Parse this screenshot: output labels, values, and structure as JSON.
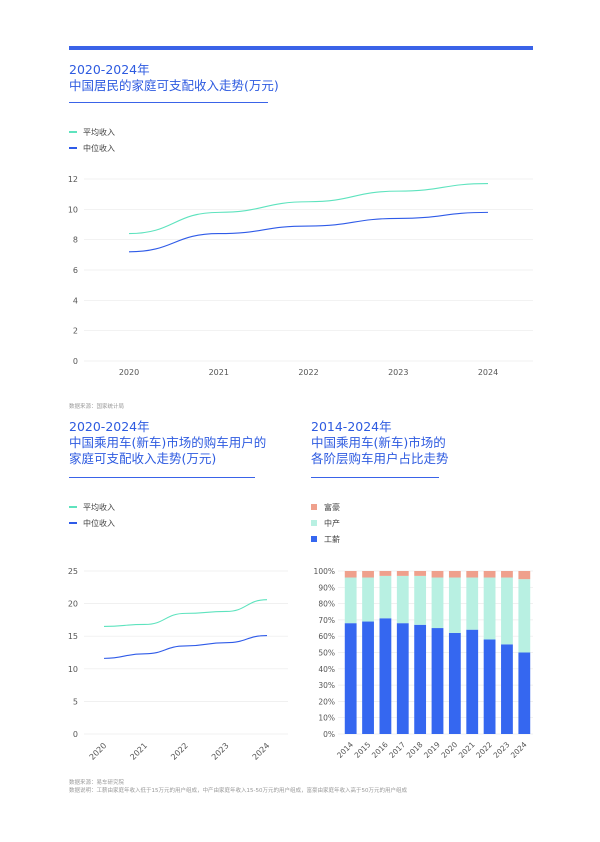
{
  "colors": {
    "accent": "#3A63E8",
    "title": "#2E5BE0",
    "avg": "#5EE3BE",
    "median": "#2F5BE8",
    "rich": "#EFA08C",
    "middle": "#B8F0E2",
    "worker": "#3567F0"
  },
  "chart1": {
    "title_line1": "2020-2024年",
    "title_line2": "中国居民的家庭可支配收入走势(万元)",
    "source": "数据来源：国家统计局"
  },
  "chart2": {
    "title_line1": "2020-2024年",
    "title_line2": "中国乘用车(新车)市场的购车用户的",
    "title_line3": "家庭可支配收入走势(万元)"
  },
  "chart3": {
    "title_line1": "2014-2024年",
    "title_line2": "中国乘用车(新车)市场的",
    "title_line3": "各阶层购车用户占比走势"
  },
  "footer": {
    "source": "数据来源：易车研究院",
    "note": "数据说明：工薪由家庭年收入低于15万元的用户组成，中产由家庭年收入15-50万元的用户组成，富豪由家庭年收入高于50万元的用户组成"
  },
  "chart_data": [
    {
      "type": "line",
      "x": [
        "2020",
        "2021",
        "2022",
        "2023",
        "2024"
      ],
      "series": [
        {
          "name": "平均收入",
          "values": [
            8.4,
            9.8,
            10.5,
            11.2,
            11.7
          ]
        },
        {
          "name": "中位收入",
          "values": [
            7.2,
            8.4,
            8.9,
            9.4,
            9.8
          ]
        }
      ],
      "yticks": [
        "0",
        "2",
        "4",
        "6",
        "8",
        "10",
        "12"
      ],
      "ylim": [
        0,
        12
      ],
      "legend": "top-left",
      "grid": true
    },
    {
      "type": "line",
      "x": [
        "2020",
        "2021",
        "2022",
        "2023",
        "2024"
      ],
      "series": [
        {
          "name": "平均收入",
          "values": [
            16.5,
            16.8,
            18.5,
            18.8,
            20.6
          ]
        },
        {
          "name": "中位收入",
          "values": [
            11.6,
            12.3,
            13.5,
            14.0,
            15.1
          ]
        }
      ],
      "yticks": [
        "0",
        "5",
        "10",
        "15",
        "20",
        "25"
      ],
      "ylim": [
        0,
        25
      ],
      "legend": "top-left",
      "grid": true
    },
    {
      "type": "bar",
      "stacked": true,
      "categories": [
        "2014",
        "2015",
        "2016",
        "2017",
        "2018",
        "2019",
        "2020",
        "2021",
        "2022",
        "2023",
        "2024"
      ],
      "series": [
        {
          "name": "工薪",
          "values": [
            68,
            69,
            71,
            68,
            67,
            65,
            62,
            64,
            58,
            55,
            50
          ]
        },
        {
          "name": "中产",
          "values": [
            28,
            27,
            26,
            29,
            30,
            31,
            34,
            32,
            38,
            41,
            45
          ]
        },
        {
          "name": "富豪",
          "values": [
            4,
            4,
            3,
            3,
            3,
            4,
            4,
            4,
            4,
            4,
            5
          ]
        }
      ],
      "yticks": [
        "0%",
        "10%",
        "20%",
        "30%",
        "40%",
        "50%",
        "60%",
        "70%",
        "80%",
        "90%",
        "100%"
      ],
      "ylim": [
        0,
        100
      ],
      "legend": "top-left",
      "grid": true
    }
  ]
}
